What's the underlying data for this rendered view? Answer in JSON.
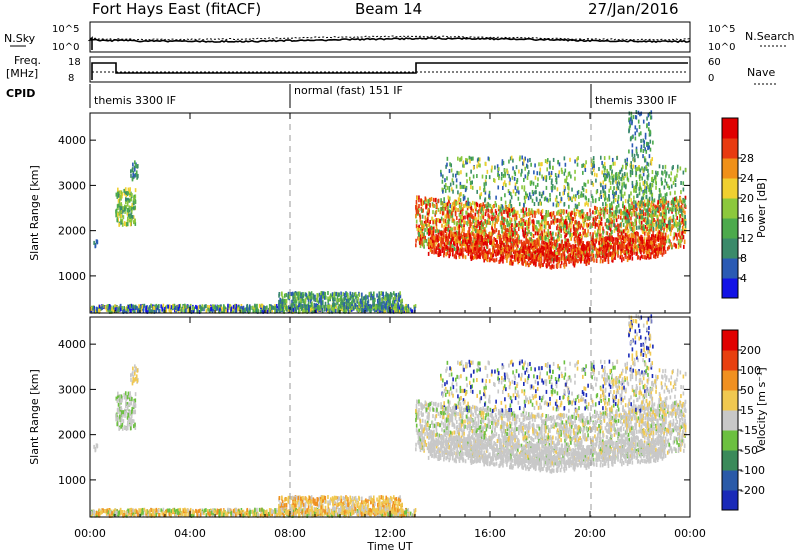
{
  "header": {
    "station": "Fort Hays East (fitACF)",
    "beam": "Beam 14",
    "date": "27/Jan/2016"
  },
  "strip1": {
    "left_label": "N.Sky",
    "right_label": "N.Search",
    "left_ticks": [
      "10^5",
      "10^0"
    ],
    "right_ticks": [
      "10^5",
      "10^0"
    ]
  },
  "strip2": {
    "left_label_1": "Freq.",
    "left_label_2": "[MHz]",
    "right_label": "Nave",
    "left_ticks": [
      "18",
      "8"
    ],
    "right_ticks": [
      "60",
      "0"
    ]
  },
  "cpid": {
    "label": "CPID",
    "segments": [
      "themis 3300 IF",
      "normal (fast) 151 IF",
      "themis 3300 IF"
    ]
  },
  "chart_data": [
    {
      "type": "heatmap",
      "name": "power",
      "ylabel": "Slant Range [km]",
      "yticks": [
        1000,
        2000,
        3000,
        4000
      ],
      "ylim": [
        180,
        4600
      ],
      "colorbar_label": "Power [dB]",
      "colorbar_ticks": [
        "4",
        "8",
        "12",
        "16",
        "20",
        "24",
        "28"
      ],
      "colorbar_colors": [
        "#1212e6",
        "#2a5ab4",
        "#3a8a6a",
        "#4caa4c",
        "#8cc83c",
        "#f0d030",
        "#f09018",
        "#e83a10",
        "#e00000"
      ]
    },
    {
      "type": "heatmap",
      "name": "velocity",
      "ylabel": "Slant Range [km]",
      "yticks": [
        1000,
        2000,
        3000,
        4000
      ],
      "ylim": [
        180,
        4600
      ],
      "colorbar_label": "Velocity [m s⁻¹]",
      "colorbar_ticks": [
        "200",
        "100",
        "50",
        "15",
        "-15",
        "-50",
        "-100",
        "-200"
      ],
      "colorbar_colors": [
        "#1a2ab8",
        "#2a5aa8",
        "#3a8a5a",
        "#6cc040",
        "#c8c8c8",
        "#f0c850",
        "#f09020",
        "#e84010",
        "#e00000"
      ]
    }
  ],
  "x_axis": {
    "label": "Time UT",
    "ticks": [
      "00:00",
      "04:00",
      "08:00",
      "12:00",
      "16:00",
      "20:00",
      "00:00"
    ]
  }
}
